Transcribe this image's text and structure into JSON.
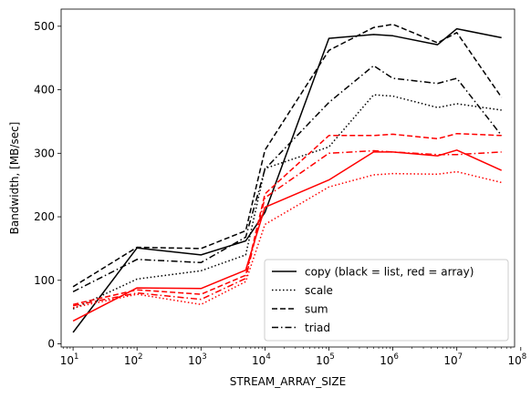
{
  "chart_data": {
    "type": "line",
    "xlabel": "STREAM_ARRAY_SIZE",
    "ylabel": "Bandwidth, [MB/sec]",
    "xscale": "log",
    "xlim": [
      6.5,
      80000000
    ],
    "ylim": [
      -5,
      527
    ],
    "x": [
      10,
      100,
      1000,
      5000,
      10000,
      100000,
      500000,
      1000000,
      5000000,
      10000000,
      50000000
    ],
    "x_tick_values": [
      10,
      100,
      1000,
      10000,
      100000,
      1000000,
      10000000,
      100000000
    ],
    "x_tick_labels": [
      {
        "base": "10",
        "exp": "1"
      },
      {
        "base": "10",
        "exp": "2"
      },
      {
        "base": "10",
        "exp": "3"
      },
      {
        "base": "10",
        "exp": "4"
      },
      {
        "base": "10",
        "exp": "5"
      },
      {
        "base": "10",
        "exp": "6"
      },
      {
        "base": "10",
        "exp": "7"
      },
      {
        "base": "10",
        "exp": "8"
      }
    ],
    "y_ticks": [
      0,
      100,
      200,
      300,
      400,
      500
    ],
    "y_tick_labels": [
      "0",
      "100",
      "200",
      "300",
      "400",
      "500"
    ],
    "legend": {
      "position": "lower right",
      "entries": [
        {
          "label": "copy (black = list, red = array)",
          "dash": "solid"
        },
        {
          "label": "scale",
          "dash": "dotted"
        },
        {
          "label": "sum",
          "dash": "dashed"
        },
        {
          "label": "triad",
          "dash": "dashdot"
        }
      ]
    },
    "colors": {
      "list": "#000000",
      "array": "#ff0000"
    },
    "series": [
      {
        "group": "list",
        "kind": "copy",
        "color": "#000000",
        "dash": "solid",
        "values": [
          18,
          151,
          140,
          162,
          207,
          481,
          487,
          485,
          471,
          496,
          482
        ]
      },
      {
        "group": "list",
        "kind": "scale",
        "color": "#000000",
        "dash": "dotted",
        "values": [
          55,
          102,
          115,
          140,
          276,
          310,
          392,
          390,
          372,
          378,
          368
        ]
      },
      {
        "group": "list",
        "kind": "sum",
        "color": "#000000",
        "dash": "dashed",
        "values": [
          90,
          152,
          150,
          178,
          305,
          462,
          498,
          503,
          474,
          490,
          388
        ]
      },
      {
        "group": "list",
        "kind": "triad",
        "color": "#000000",
        "dash": "dashdot",
        "values": [
          82,
          133,
          128,
          168,
          275,
          380,
          438,
          418,
          410,
          418,
          328
        ]
      },
      {
        "group": "array",
        "kind": "copy",
        "color": "#ff0000",
        "dash": "solid",
        "values": [
          36,
          88,
          87,
          116,
          215,
          258,
          302,
          302,
          296,
          305,
          273
        ]
      },
      {
        "group": "array",
        "kind": "scale",
        "color": "#ff0000",
        "dash": "dotted",
        "values": [
          57,
          78,
          62,
          98,
          188,
          247,
          266,
          268,
          267,
          271,
          254
        ]
      },
      {
        "group": "array",
        "kind": "sum",
        "color": "#ff0000",
        "dash": "dashed",
        "values": [
          62,
          85,
          78,
          108,
          236,
          328,
          328,
          330,
          323,
          331,
          328
        ]
      },
      {
        "group": "array",
        "kind": "triad",
        "color": "#ff0000",
        "dash": "dashdot",
        "values": [
          60,
          80,
          70,
          103,
          230,
          300,
          304,
          302,
          298,
          298,
          302
        ]
      }
    ]
  }
}
